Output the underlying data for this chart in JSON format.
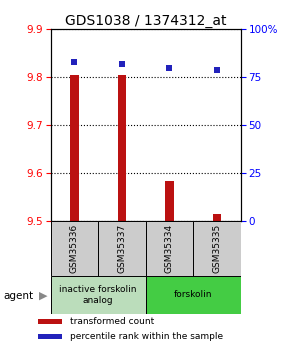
{
  "title": "GDS1038 / 1374312_at",
  "samples": [
    "GSM35336",
    "GSM35337",
    "GSM35334",
    "GSM35335"
  ],
  "bar_values": [
    9.805,
    9.805,
    9.583,
    9.515
  ],
  "percentile_values": [
    83,
    82,
    80,
    79
  ],
  "ylim_left": [
    9.5,
    9.9
  ],
  "ylim_right": [
    0,
    100
  ],
  "yticks_left": [
    9.5,
    9.6,
    9.7,
    9.8,
    9.9
  ],
  "yticks_right": [
    0,
    25,
    50,
    75,
    100
  ],
  "bar_color": "#bb1111",
  "percentile_color": "#2222bb",
  "bar_base": 9.5,
  "groups": [
    {
      "label": "inactive forskolin\nanalog",
      "samples": [
        0,
        1
      ],
      "color": "#bbddbb"
    },
    {
      "label": "forskolin",
      "samples": [
        2,
        3
      ],
      "color": "#44cc44"
    }
  ],
  "agent_label": "agent",
  "legend_items": [
    {
      "label": "transformed count",
      "color": "#bb1111"
    },
    {
      "label": "percentile rank within the sample",
      "color": "#2222bb"
    }
  ],
  "sample_box_color": "#cccccc",
  "title_fontsize": 10,
  "tick_fontsize": 7.5,
  "bar_width": 0.18
}
